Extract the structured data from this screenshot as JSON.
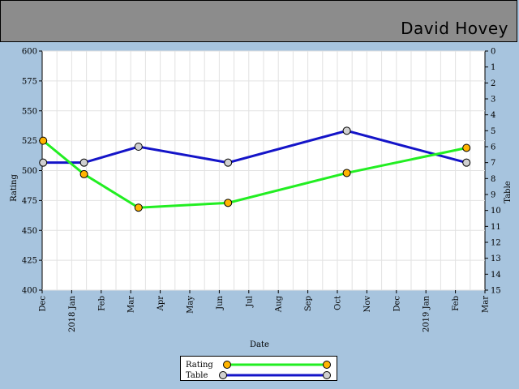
{
  "header": {
    "player_name": "David Hovey"
  },
  "colors": {
    "rating_line": "#22ee22",
    "table_line": "#1414c8",
    "rating_marker": "#ffb400",
    "table_marker": "#d0d0d0",
    "background": "#a7c4de",
    "header_bg": "#8c8c8c"
  },
  "chart_data": {
    "type": "line",
    "xlabel": "Date",
    "ylabel": "Rating",
    "y2label": "Table",
    "ylim": [
      400,
      600
    ],
    "y2lim": [
      0,
      15
    ],
    "y2_inverted": true,
    "y_ticks": [
      400,
      425,
      450,
      475,
      500,
      525,
      550,
      575,
      600
    ],
    "y2_ticks": [
      0,
      1,
      2,
      3,
      4,
      5,
      6,
      7,
      8,
      9,
      10,
      11,
      12,
      13,
      14,
      15
    ],
    "x_ticks": [
      "Dec",
      "2018 Jan",
      "Feb",
      "Mar",
      "Apr",
      "May",
      "Jun",
      "Jul",
      "Aug",
      "Sep",
      "Oct",
      "Nov",
      "Dec",
      "2019 Jan",
      "Feb",
      "Mar"
    ],
    "x_range": [
      "2017-12-01",
      "2019-03-01"
    ],
    "grid": true,
    "legend_position": "bottom-center",
    "series": [
      {
        "name": "Rating",
        "axis": "left",
        "points": [
          {
            "date": "2017-12-02",
            "value": 525
          },
          {
            "date": "2018-01-13",
            "value": 497
          },
          {
            "date": "2018-03-10",
            "value": 469
          },
          {
            "date": "2018-06-10",
            "value": 473
          },
          {
            "date": "2018-10-10",
            "value": 498
          },
          {
            "date": "2019-02-10",
            "value": 519
          }
        ]
      },
      {
        "name": "Table",
        "axis": "right",
        "points": [
          {
            "date": "2017-12-02",
            "value": 7
          },
          {
            "date": "2018-01-13",
            "value": 7
          },
          {
            "date": "2018-03-10",
            "value": 6
          },
          {
            "date": "2018-06-10",
            "value": 7
          },
          {
            "date": "2018-10-10",
            "value": 5
          },
          {
            "date": "2019-02-10",
            "value": 7
          }
        ]
      }
    ]
  }
}
